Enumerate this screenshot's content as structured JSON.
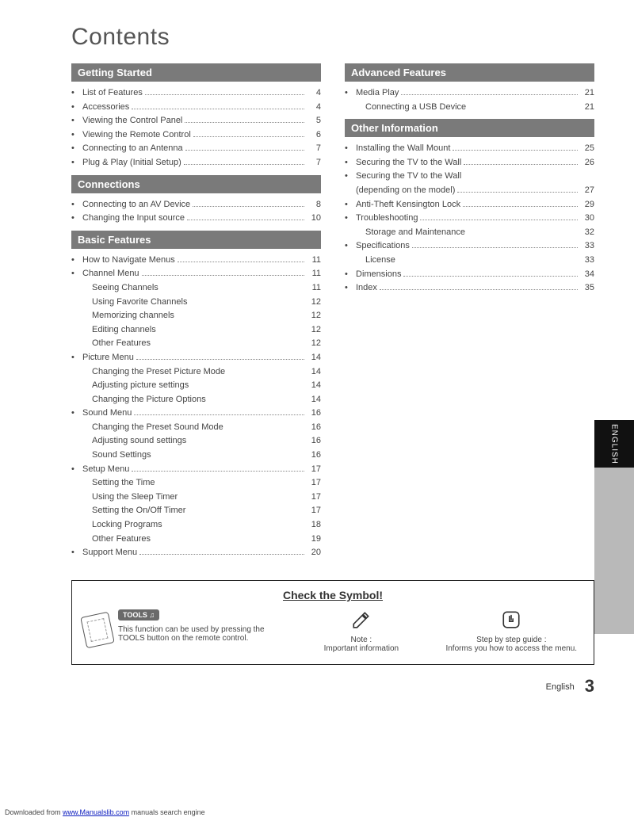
{
  "title": "Contents",
  "colors": {
    "section_header_bg": "#7a7a7a",
    "section_header_text": "#ffffff",
    "text": "#444444",
    "side_tab_bg": "#b9b9b9",
    "side_tab_black": "#111111"
  },
  "left_sections": [
    {
      "header": "Getting Started",
      "items": [
        {
          "label": "List of Features",
          "page": "4",
          "bullet": true
        },
        {
          "label": "Accessories",
          "page": "4",
          "bullet": true
        },
        {
          "label": "Viewing the Control Panel",
          "page": "5",
          "bullet": true
        },
        {
          "label": "Viewing the Remote Control",
          "page": "6",
          "bullet": true
        },
        {
          "label": "Connecting to an Antenna",
          "page": "7",
          "bullet": true
        },
        {
          "label": "Plug & Play (Initial Setup)",
          "page": "7",
          "bullet": true
        }
      ]
    },
    {
      "header": "Connections",
      "items": [
        {
          "label": "Connecting to an AV Device",
          "page": "8",
          "bullet": true
        },
        {
          "label": "Changing the Input source",
          "page": "10",
          "bullet": true
        }
      ]
    },
    {
      "header": "Basic Features",
      "items": [
        {
          "label": "How to Navigate Menus",
          "page": "11",
          "bullet": true
        },
        {
          "label": "Channel Menu",
          "page": "11",
          "bullet": true
        },
        {
          "label": "Seeing Channels",
          "page": "11",
          "sub": true
        },
        {
          "label": "Using Favorite Channels",
          "page": "12",
          "sub": true
        },
        {
          "label": "Memorizing channels",
          "page": "12",
          "sub": true
        },
        {
          "label": "Editing channels",
          "page": "12",
          "sub": true
        },
        {
          "label": "Other Features",
          "page": "12",
          "sub": true
        },
        {
          "label": "Picture Menu",
          "page": "14",
          "bullet": true
        },
        {
          "label": "Changing the Preset Picture Mode",
          "page": "14",
          "sub": true
        },
        {
          "label": "Adjusting picture settings",
          "page": "14",
          "sub": true
        },
        {
          "label": "Changing the Picture Options",
          "page": "14",
          "sub": true
        },
        {
          "label": "Sound Menu",
          "page": "16",
          "bullet": true
        },
        {
          "label": "Changing the Preset Sound Mode",
          "page": "16",
          "sub": true
        },
        {
          "label": "Adjusting sound settings",
          "page": "16",
          "sub": true
        },
        {
          "label": "Sound Settings",
          "page": "16",
          "sub": true
        },
        {
          "label": "Setup Menu",
          "page": "17",
          "bullet": true
        },
        {
          "label": "Setting the Time",
          "page": "17",
          "sub": true
        },
        {
          "label": "Using the Sleep Timer",
          "page": "17",
          "sub": true
        },
        {
          "label": "Setting the On/Off Timer",
          "page": "17",
          "sub": true
        },
        {
          "label": "Locking Programs",
          "page": "18",
          "sub": true
        },
        {
          "label": "Other Features",
          "page": "19",
          "sub": true
        },
        {
          "label": "Support Menu",
          "page": "20",
          "bullet": true
        }
      ]
    }
  ],
  "right_sections": [
    {
      "header": "Advanced Features",
      "items": [
        {
          "label": "Media Play",
          "page": "21",
          "bullet": true
        },
        {
          "label": "Connecting a USB Device",
          "page": "21",
          "sub": true
        }
      ]
    },
    {
      "header": "Other Information",
      "items": [
        {
          "label": "Installing the Wall Mount",
          "page": "25",
          "bullet": true
        },
        {
          "label": "Securing the TV to the Wall",
          "page": "26",
          "bullet": true
        },
        {
          "label": "Securing the TV to the Wall",
          "nobreak": true,
          "bullet": true
        },
        {
          "label": "(depending on the model)",
          "page": "27",
          "cont": true
        },
        {
          "label": "Anti-Theft Kensington Lock",
          "page": "29",
          "bullet": true
        },
        {
          "label": "Troubleshooting",
          "page": "30",
          "bullet": true
        },
        {
          "label": "Storage and Maintenance",
          "page": "32",
          "sub": true
        },
        {
          "label": "Specifications",
          "page": "33",
          "bullet": true
        },
        {
          "label": "License",
          "page": "33",
          "sub": true
        },
        {
          "label": "Dimensions",
          "page": "34",
          "bullet": true
        },
        {
          "label": "Index",
          "page": "35",
          "bullet": true
        }
      ]
    }
  ],
  "side_tab_label": "ENGLISH",
  "symbol_box": {
    "title": "Check the Symbol!",
    "tools_badge": "TOOLS ♫",
    "tools_text": "This function can be used by pressing the TOOLS button on the remote control.",
    "note_label": "Note :",
    "note_text": "Important information",
    "guide_label": "Step by step guide :",
    "guide_text": "Informs you how to access the menu."
  },
  "footer": {
    "language": "English",
    "page_number": "3"
  },
  "download_footer": {
    "prefix": "Downloaded from ",
    "link_text": "www.Manualslib.com",
    "suffix": " manuals search engine"
  }
}
